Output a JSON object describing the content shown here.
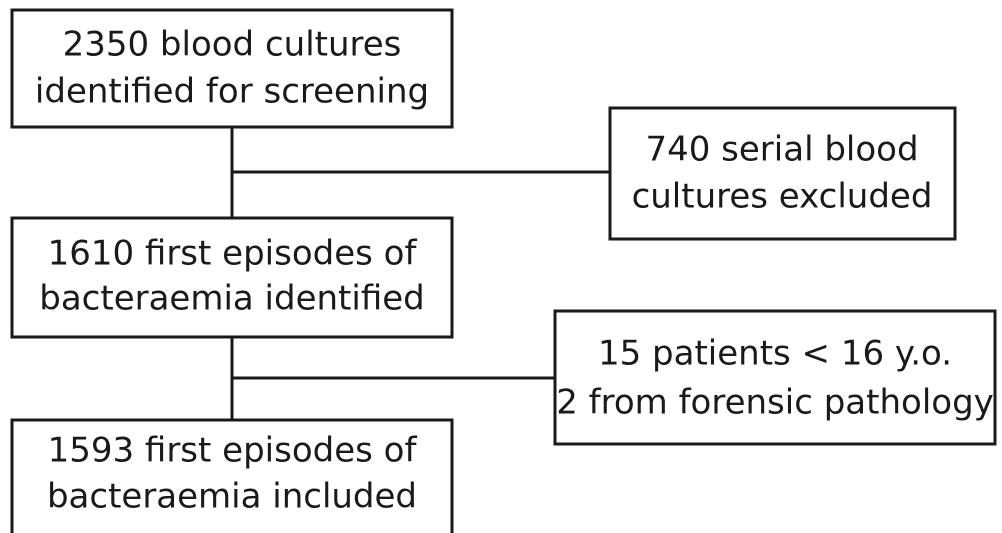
{
  "nodes": [
    {
      "lines": [
        "2350 blood cultures",
        "identified for screening"
      ]
    },
    {
      "lines": [
        "740 serial blood",
        "cultures excluded"
      ]
    },
    {
      "lines": [
        "1610 first episodes of",
        "bacteraemia identified"
      ]
    },
    {
      "lines": [
        "15 patients < 16 y.o.",
        "2 from forensic pathology"
      ]
    },
    {
      "lines": [
        "1593 first episodes of",
        "bacteraemia included"
      ]
    }
  ]
}
